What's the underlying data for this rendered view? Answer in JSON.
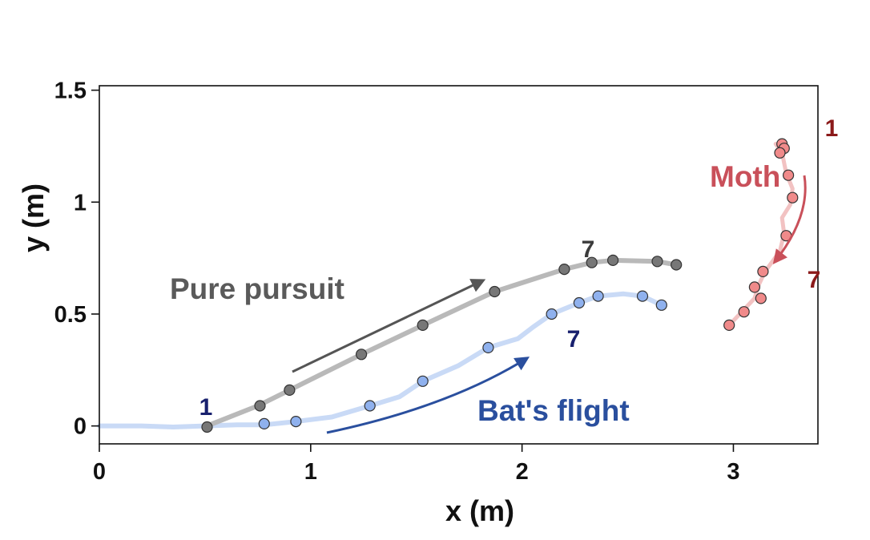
{
  "chart_data": {
    "type": "line",
    "xlabel": "x (m)",
    "ylabel": "y (m)",
    "xlim": [
      0,
      3.4
    ],
    "ylim": [
      -0.08,
      1.52
    ],
    "xticks": [
      "0",
      "1",
      "2",
      "3"
    ],
    "yticks": [
      "0",
      "0.5",
      "1",
      "1.5"
    ],
    "annotations": {
      "pure_pursuit": "Pure pursuit",
      "bats_flight": "Bat's flight",
      "moth": "Moth"
    },
    "series": [
      {
        "name": "Pure pursuit",
        "color": "#b9b9b9",
        "marker_color": "#777777",
        "start_label": "1",
        "end_label": "7",
        "path": [
          [
            0.51,
            0.0
          ],
          [
            0.75,
            0.09
          ],
          [
            0.9,
            0.16
          ],
          [
            1.24,
            0.32
          ],
          [
            1.53,
            0.45
          ],
          [
            1.87,
            0.6
          ],
          [
            2.1,
            0.67
          ],
          [
            2.2,
            0.7
          ],
          [
            2.33,
            0.73
          ],
          [
            2.43,
            0.74
          ],
          [
            2.64,
            0.735
          ],
          [
            2.73,
            0.72
          ]
        ],
        "points": [
          [
            0.51,
            -0.005
          ],
          [
            0.76,
            0.09
          ],
          [
            0.9,
            0.16
          ],
          [
            1.24,
            0.32
          ],
          [
            1.53,
            0.45
          ],
          [
            1.87,
            0.6
          ],
          [
            2.2,
            0.7
          ],
          [
            2.33,
            0.73
          ],
          [
            2.43,
            0.74
          ],
          [
            2.64,
            0.735
          ],
          [
            2.73,
            0.72
          ]
        ]
      },
      {
        "name": "Bat's flight",
        "color": "#c9daf6",
        "marker_color": "#8fb1ee",
        "start_label": "1",
        "end_label": "7",
        "path": [
          [
            0.0,
            0.0
          ],
          [
            0.2,
            0.0
          ],
          [
            0.35,
            -0.005
          ],
          [
            0.5,
            0.0
          ],
          [
            0.65,
            0.005
          ],
          [
            0.78,
            0.005
          ],
          [
            0.93,
            0.02
          ],
          [
            1.1,
            0.04
          ],
          [
            1.28,
            0.09
          ],
          [
            1.42,
            0.13
          ],
          [
            1.53,
            0.2
          ],
          [
            1.7,
            0.27
          ],
          [
            1.84,
            0.35
          ],
          [
            1.98,
            0.39
          ],
          [
            2.05,
            0.44
          ],
          [
            2.14,
            0.5
          ],
          [
            2.27,
            0.55
          ],
          [
            2.36,
            0.58
          ],
          [
            2.48,
            0.59
          ],
          [
            2.57,
            0.58
          ],
          [
            2.66,
            0.54
          ]
        ],
        "points": [
          [
            0.78,
            0.01
          ],
          [
            0.93,
            0.02
          ],
          [
            1.28,
            0.09
          ],
          [
            1.53,
            0.2
          ],
          [
            1.84,
            0.35
          ],
          [
            2.14,
            0.5
          ],
          [
            2.27,
            0.55
          ],
          [
            2.36,
            0.58
          ],
          [
            2.57,
            0.58
          ],
          [
            2.66,
            0.54
          ]
        ]
      },
      {
        "name": "Moth",
        "color": "#f2c2c2",
        "marker_color": "#f08a8a",
        "start_label": "1",
        "end_label": "7",
        "path": [
          [
            3.2,
            1.26
          ],
          [
            3.23,
            1.22
          ],
          [
            3.25,
            1.13
          ],
          [
            3.28,
            1.06
          ],
          [
            3.27,
            0.99
          ],
          [
            3.23,
            0.93
          ],
          [
            3.24,
            0.86
          ],
          [
            3.22,
            0.78
          ],
          [
            3.15,
            0.69
          ],
          [
            3.12,
            0.63
          ],
          [
            3.1,
            0.57
          ],
          [
            3.04,
            0.51
          ],
          [
            2.98,
            0.45
          ]
        ],
        "points": [
          [
            3.23,
            1.26
          ],
          [
            3.24,
            1.24
          ],
          [
            3.22,
            1.22
          ],
          [
            3.26,
            1.12
          ],
          [
            3.28,
            1.02
          ],
          [
            3.25,
            0.85
          ],
          [
            3.14,
            0.69
          ],
          [
            3.1,
            0.62
          ],
          [
            3.13,
            0.57
          ],
          [
            3.05,
            0.51
          ],
          [
            2.98,
            0.45
          ]
        ]
      }
    ]
  }
}
